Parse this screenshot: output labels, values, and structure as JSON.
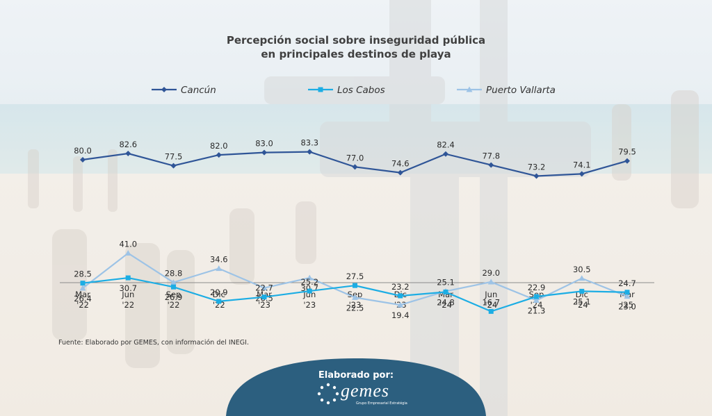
{
  "title_lines": [
    "Percepción social sobre inseguridad pública",
    "en principales destinos de playa"
  ],
  "source_note": "Fuente: Elaborado por GEMES, con información del INEGI.",
  "badge": {
    "label": "Elaborado por:",
    "logo_name": "gemes",
    "logo_tagline": "Grupo Empresarial Estratégia"
  },
  "colors": {
    "cancun": "#2F5597",
    "los_cabos": "#1CADE4",
    "puerto_vallarta": "#9DC3E6",
    "badge": "#2C5F7F"
  },
  "chart_data": {
    "type": "line",
    "title": "Percepción social sobre inseguridad pública en principales destinos de playa",
    "categories": [
      [
        "Mar",
        "'22"
      ],
      [
        "Jun",
        "'22"
      ],
      [
        "Sep",
        "'22"
      ],
      [
        "Dic",
        "'22"
      ],
      [
        "Mar",
        "'23"
      ],
      [
        "Jun",
        "'23"
      ],
      [
        "Sep",
        "'23"
      ],
      [
        "Dic",
        "'23"
      ],
      [
        "Mar",
        "'24"
      ],
      [
        "Jun",
        "'24"
      ],
      [
        "Sep",
        "'24"
      ],
      [
        "Dic",
        "'24"
      ],
      [
        "Mar",
        "'25"
      ]
    ],
    "legend_position": "top",
    "grid": false,
    "y_range": [
      0,
      100
    ],
    "series": [
      {
        "name": "Cancún",
        "color_key": "cancun",
        "marker": "diamond",
        "values": [
          80.0,
          82.6,
          77.5,
          82.0,
          83.0,
          83.3,
          77.0,
          74.6,
          82.4,
          77.8,
          73.2,
          74.1,
          79.5
        ],
        "labels": [
          "80.0",
          "82.6",
          "77.5",
          "82.0",
          "83.0",
          "83.3",
          "77.0",
          "74.6",
          "82.4",
          "77.8",
          "73.2",
          "74.1",
          "79.5"
        ]
      },
      {
        "name": "Los Cabos",
        "color_key": "los_cabos",
        "marker": "square",
        "values": [
          28.5,
          30.7,
          26.9,
          20.9,
          22.7,
          25.2,
          27.5,
          23.2,
          24.8,
          16.7,
          22.9,
          25.1,
          24.7
        ],
        "labels": [
          "28.5",
          "30.7",
          "26.9",
          "20.9",
          "22.7",
          "25.2",
          "27.5",
          "23.2",
          "24.8",
          "16.7",
          "22.9",
          "25.1",
          "24.7"
        ]
      },
      {
        "name": "Puerto Vallarta",
        "color_key": "puerto_vallarta",
        "marker": "triangle",
        "values": [
          26.4,
          41.0,
          28.8,
          34.6,
          26.5,
          30.7,
          22.5,
          19.4,
          25.1,
          29.0,
          21.3,
          30.5,
          23.0
        ],
        "labels": [
          "26.4",
          "41.0",
          "28.8",
          "34.6",
          "26.5",
          "30.7",
          "22.5",
          "19.4",
          "25.1",
          "29.0",
          "21.3",
          "30.5",
          "23.0"
        ]
      }
    ]
  }
}
